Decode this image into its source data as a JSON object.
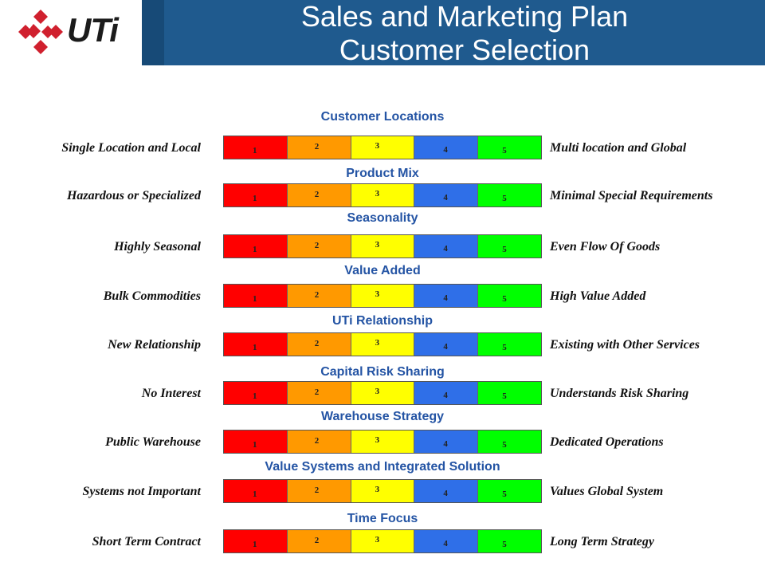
{
  "header": {
    "logo_text": "UTi",
    "title_line1": "Sales and Marketing Plan",
    "title_line2": "Customer Selection"
  },
  "colors": {
    "header_bg": "#1f5a8e",
    "category_text": "#2454a4",
    "scale": [
      "#ff0000",
      "#ff9900",
      "#ffff00",
      "#2f6fe8",
      "#00ff00"
    ]
  },
  "scale_labels": [
    "1",
    "2",
    "3",
    "4",
    "5"
  ],
  "rows": [
    {
      "category": "Customer Locations",
      "left": "Single Location and Local",
      "right": "Multi location and Global"
    },
    {
      "category": "Product Mix",
      "left": "Hazardous or Specialized",
      "right": "Minimal Special Requirements"
    },
    {
      "category": "Seasonality",
      "left": "Highly Seasonal",
      "right": "Even Flow Of Goods"
    },
    {
      "category": "Value Added",
      "left": "Bulk Commodities",
      "right": "High Value Added"
    },
    {
      "category": "UTi Relationship",
      "left": "New Relationship",
      "right": "Existing with Other Services"
    },
    {
      "category": "Capital Risk Sharing",
      "left": "No Interest",
      "right": "Understands Risk Sharing"
    },
    {
      "category": "Warehouse Strategy",
      "left": "Public Warehouse",
      "right": "Dedicated Operations"
    },
    {
      "category": "Value Systems and Integrated Solution",
      "left": "Systems not Important",
      "right": "Values Global System"
    },
    {
      "category": "Time Focus",
      "left": "Short Term Contract",
      "right": "Long Term Strategy"
    }
  ]
}
